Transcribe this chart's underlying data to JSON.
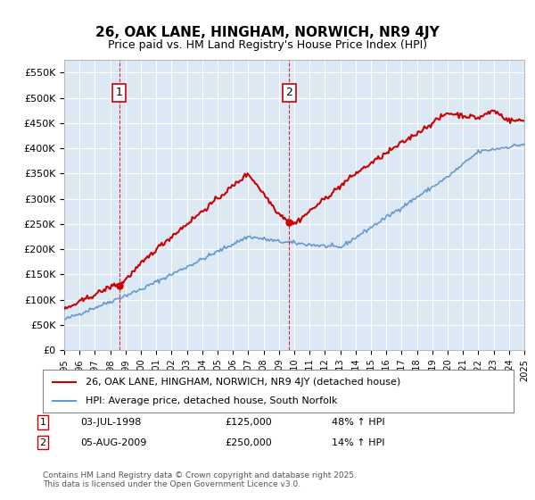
{
  "title": "26, OAK LANE, HINGHAM, NORWICH, NR9 4JY",
  "subtitle": "Price paid vs. HM Land Registry's House Price Index (HPI)",
  "legend_line1": "26, OAK LANE, HINGHAM, NORWICH, NR9 4JY (detached house)",
  "legend_line2": "HPI: Average price, detached house, South Norfolk",
  "footer": "Contains HM Land Registry data © Crown copyright and database right 2025.\nThis data is licensed under the Open Government Licence v3.0.",
  "sale1_date": "03-JUL-1998",
  "sale1_price": 125000,
  "sale1_hpi": "48% ↑ HPI",
  "sale2_date": "05-AUG-2009",
  "sale2_price": 250000,
  "sale2_hpi": "14% ↑ HPI",
  "red_color": "#cc0000",
  "blue_color": "#6699cc",
  "background_color": "#dce9f5",
  "grid_color": "#ffffff",
  "marker_vline_color": "#cc0000",
  "ylim": [
    0,
    575000
  ],
  "yticks": [
    0,
    50000,
    100000,
    150000,
    200000,
    250000,
    300000,
    350000,
    400000,
    450000,
    500000,
    550000
  ],
  "x_start_year": 1995,
  "x_end_year": 2025
}
